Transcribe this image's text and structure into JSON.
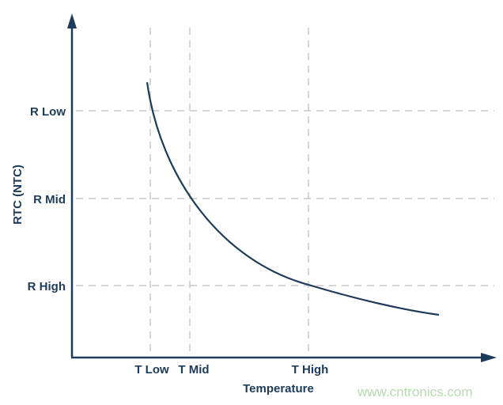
{
  "chart_data": {
    "type": "line",
    "title": "",
    "xlabel": "Temperature",
    "ylabel": "RTC (NTC)",
    "x_ticks": [
      "T Low",
      "T Mid",
      "T High"
    ],
    "y_ticks": [
      "R Low",
      "R Mid",
      "R High"
    ],
    "grid": "dashed at tick positions",
    "series": [
      {
        "points": [
          {
            "x": "T Low",
            "y": "R Low"
          },
          {
            "x": "T High",
            "y": "R High"
          }
        ]
      }
    ],
    "colors": {
      "axis": "#1d3b5a",
      "curve": "#1d3b5a",
      "grid": "#c8c8c8"
    }
  },
  "watermark": "www.cntronics.com"
}
